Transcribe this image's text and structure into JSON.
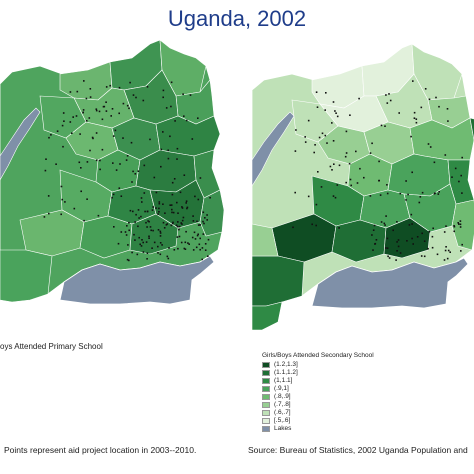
{
  "title": "Uganda, 2002",
  "left_map": {
    "caption": "oys Attended Primary School"
  },
  "right_map": {
    "legend_title": "Girls/Boys Attended Secondary School",
    "legend": [
      {
        "label": "(1.2,1.3]",
        "color": "#0f4d23"
      },
      {
        "label": "(1.1,1.2]",
        "color": "#1f6e35"
      },
      {
        "label": "(1,1.1]",
        "color": "#2f8a45"
      },
      {
        "label": "(.9,1]",
        "color": "#4aa35c"
      },
      {
        "label": "(.8,.9]",
        "color": "#6fbb72"
      },
      {
        "label": "(.7,.8]",
        "color": "#98cf93"
      },
      {
        "label": "(.6,.7]",
        "color": "#bfe1b7"
      },
      {
        "label": "[.5,.6]",
        "color": "#e2f1dc"
      },
      {
        "label": "Lakes",
        "color": "#7f90a8"
      }
    ]
  },
  "footnote": {
    "left": "Points represent aid project location in 2003--2010.",
    "right": "Source:  Bureau of Statistics, 2002 Uganda Population and"
  },
  "colors": {
    "lake": "#7f90a8",
    "border": "#ffffff",
    "point": "#111111"
  }
}
